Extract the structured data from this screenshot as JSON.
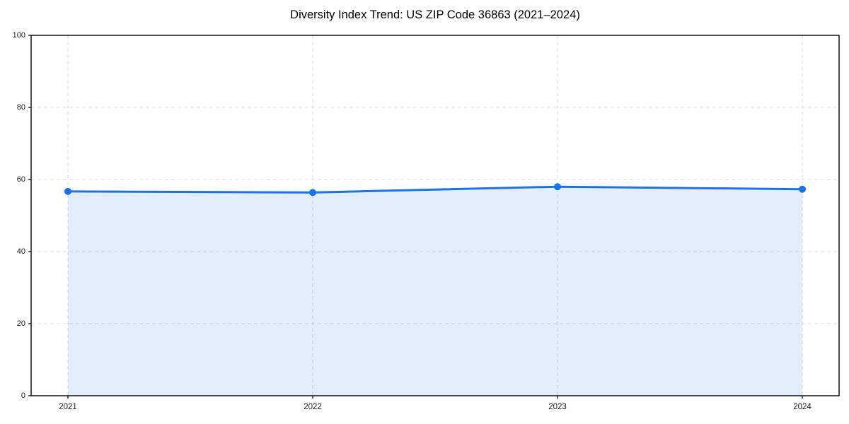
{
  "page": {
    "background": "#ffffff"
  },
  "chart_data": {
    "type": "area",
    "title": "Diversity Index Trend: US ZIP Code 36863 (2021–2024)",
    "categories": [
      "2021",
      "2022",
      "2023",
      "2024"
    ],
    "series": [
      {
        "name": "Diversity Index",
        "values": [
          56.7,
          56.4,
          58.0,
          57.3
        ]
      }
    ],
    "xlabel": "",
    "ylabel": "",
    "ylim": [
      0,
      100
    ],
    "y_ticks": [
      0,
      20,
      40,
      60,
      80,
      100
    ],
    "grid": {
      "show": true,
      "style": "dashed",
      "color": "#dedede"
    },
    "legend_position": "none",
    "colors": {
      "line": "#1a73e8",
      "marker": "#1a73e8",
      "fill": "rgba(26,115,232,0.12)",
      "axis": "#000000",
      "tick_label": "#1a1a1a",
      "title": "#000000",
      "background": "#ffffff"
    }
  }
}
